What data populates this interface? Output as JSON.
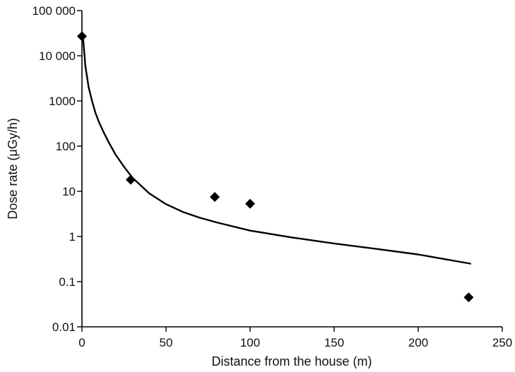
{
  "chart_data": {
    "type": "scatter",
    "title": "",
    "xlabel": "Distance from the house (m)",
    "ylabel": "Dose rate (μGy/h)",
    "xlim": [
      0,
      250
    ],
    "ylim": [
      0.01,
      100000
    ],
    "yscale": "log",
    "grid": false,
    "legend": "none",
    "x_ticks": [
      0,
      50,
      100,
      150,
      200,
      250
    ],
    "x_tick_labels": [
      "0",
      "50",
      "100",
      "150",
      "200",
      "250"
    ],
    "y_ticks": [
      0.01,
      0.1,
      1,
      10,
      100,
      1000,
      10000,
      100000
    ],
    "y_tick_labels": [
      "0.01",
      "0.1",
      "1",
      "10",
      "100",
      "1000",
      "10 000",
      "100 000"
    ],
    "series": [
      {
        "kind": "points",
        "marker": "diamond",
        "color": "#000000",
        "points": [
          {
            "x": 0,
            "y": 27000
          },
          {
            "x": 29,
            "y": 18
          },
          {
            "x": 79,
            "y": 7.5
          },
          {
            "x": 100,
            "y": 5.3
          },
          {
            "x": 230,
            "y": 0.045
          }
        ]
      },
      {
        "kind": "line",
        "color": "#000000",
        "points": [
          {
            "x": 0.5,
            "y": 30000
          },
          {
            "x": 2,
            "y": 6000
          },
          {
            "x": 4,
            "y": 2000
          },
          {
            "x": 6,
            "y": 1000
          },
          {
            "x": 8,
            "y": 550
          },
          {
            "x": 10,
            "y": 350
          },
          {
            "x": 13,
            "y": 200
          },
          {
            "x": 16,
            "y": 120
          },
          {
            "x": 20,
            "y": 65
          },
          {
            "x": 25,
            "y": 35
          },
          {
            "x": 30,
            "y": 20
          },
          {
            "x": 40,
            "y": 9
          },
          {
            "x": 50,
            "y": 5.2
          },
          {
            "x": 60,
            "y": 3.5
          },
          {
            "x": 70,
            "y": 2.6
          },
          {
            "x": 80,
            "y": 2.05
          },
          {
            "x": 100,
            "y": 1.35
          },
          {
            "x": 125,
            "y": 0.95
          },
          {
            "x": 150,
            "y": 0.7
          },
          {
            "x": 175,
            "y": 0.53
          },
          {
            "x": 200,
            "y": 0.4
          },
          {
            "x": 231,
            "y": 0.25
          }
        ]
      }
    ]
  }
}
